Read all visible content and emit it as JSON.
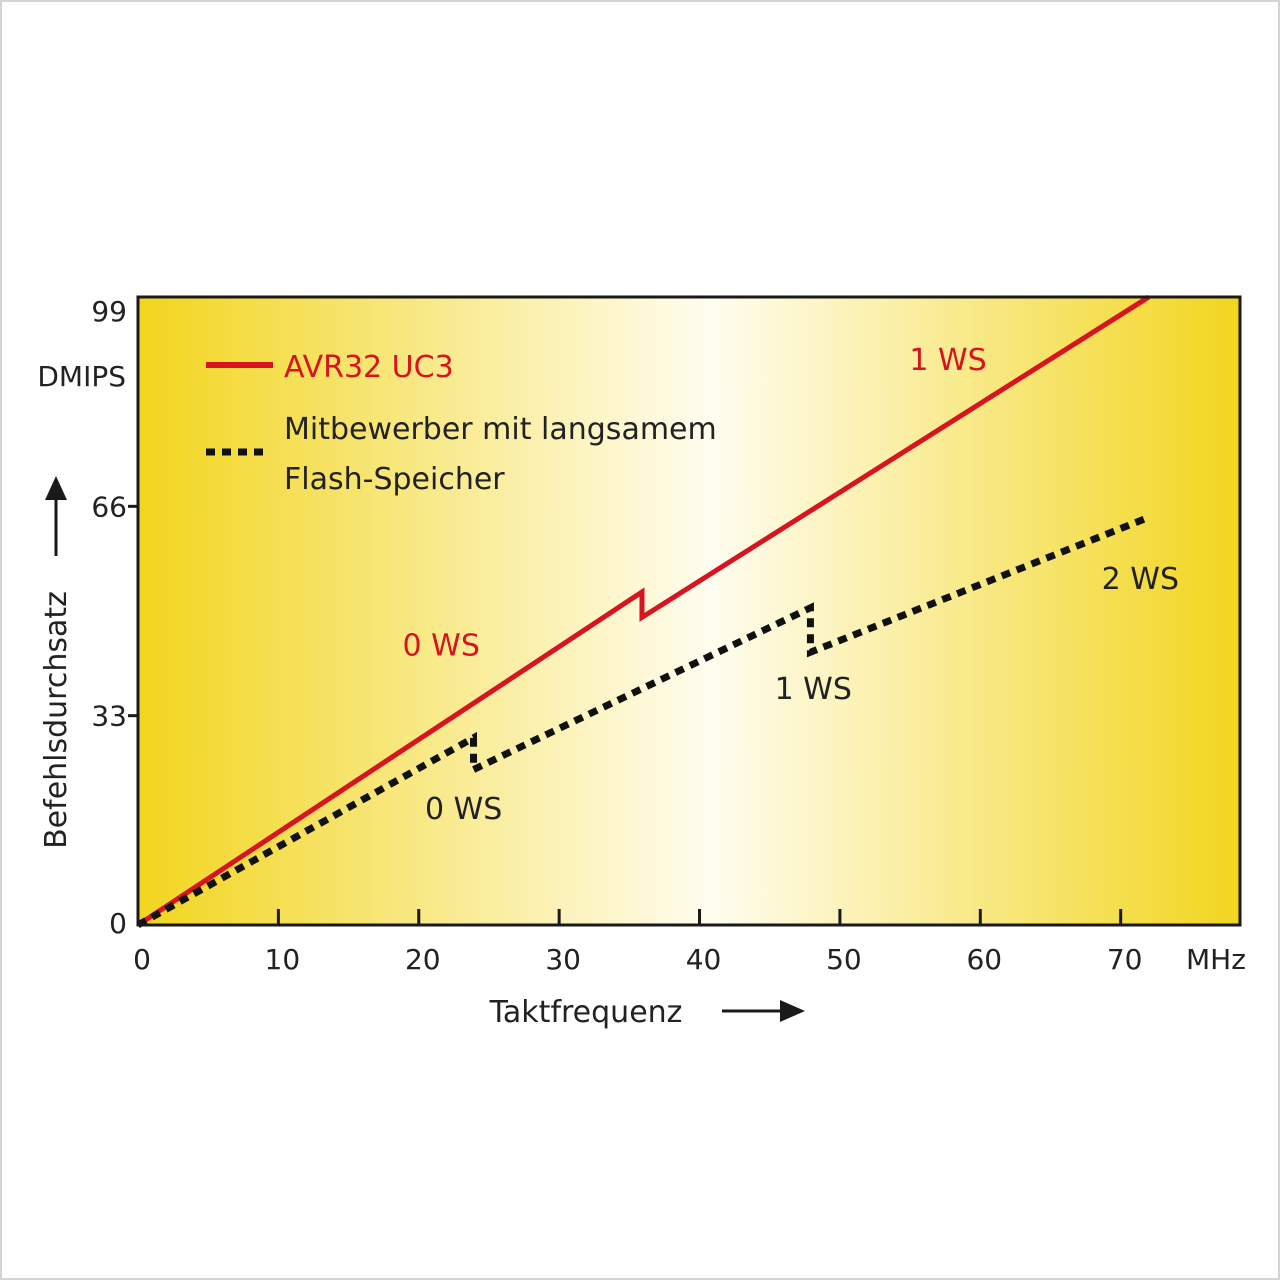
{
  "chart_data": {
    "type": "line",
    "x_unit": "MHz",
    "y_unit": "DMIPS",
    "xlabel": "Taktfrequenz",
    "ylabel": "Befehlsdurchsatz",
    "xlim": [
      0,
      78.5
    ],
    "ylim": [
      0,
      99
    ],
    "x_ticks": [
      "0",
      "10",
      "20",
      "30",
      "40",
      "50",
      "60",
      "70"
    ],
    "y_ticks": [
      "0",
      "33",
      "66",
      "99"
    ],
    "grid": false,
    "legend_position": "top-left",
    "series": [
      {
        "name": "AVR32 UC3",
        "style": "solid",
        "color": "#d7141f",
        "x": [
          0,
          35.9,
          35.9,
          72
        ],
        "y": [
          0,
          52.5,
          48.5,
          99
        ]
      },
      {
        "name": "Mitbewerber mit langsamem\nFlash-Speicher",
        "legend_lines": [
          "Mitbewerber mit langsamem",
          "Flash-Speicher"
        ],
        "style": "dashed",
        "color": "#111111",
        "x": [
          0,
          23.9,
          23.9,
          47.9,
          47.9,
          71.7
        ],
        "y": [
          0,
          29.5,
          24.5,
          50,
          43,
          64
        ]
      }
    ],
    "annotations": [
      {
        "text": "0 WS",
        "series": 0,
        "x": 21.6,
        "y": 42.5
      },
      {
        "text": "1 WS",
        "series": 0,
        "x": 57.7,
        "y": 87.5
      },
      {
        "text": "0 WS",
        "series": 1,
        "x": 23.2,
        "y": 16.7
      },
      {
        "text": "1 WS",
        "series": 1,
        "x": 48.1,
        "y": 35.6
      },
      {
        "text": "2 WS",
        "series": 1,
        "x": 71.4,
        "y": 53
      }
    ],
    "background": {
      "edge_color": "#f2d51e",
      "center_color": "#fffdf0"
    }
  }
}
